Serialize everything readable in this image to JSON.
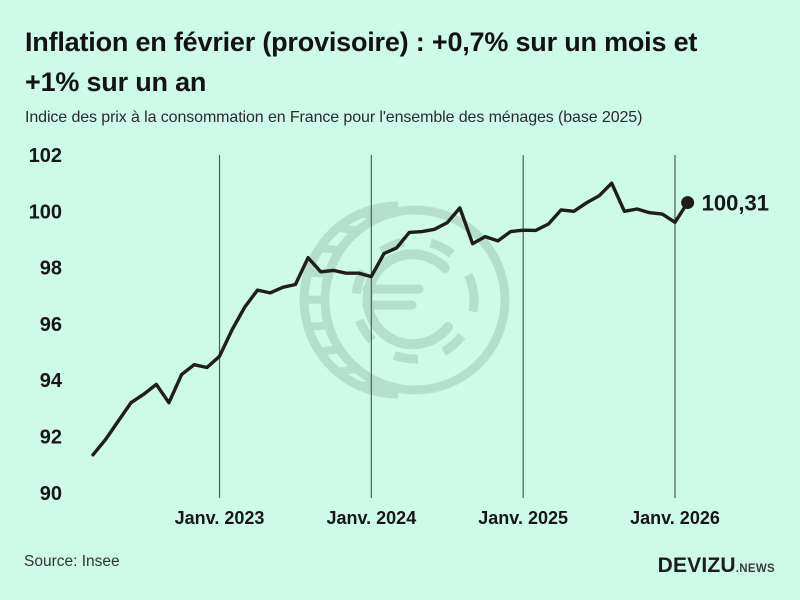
{
  "header": {
    "title_line1": "Inflation en février (provisoire) : +0,7% sur un mois et",
    "title_line2": "+1% sur un an",
    "subtitle": "Indice des prix à la consommation en France pour l'ensemble des ménages (base 2025)"
  },
  "footer": {
    "source": "Source: Insee",
    "brand": "DEVIZU",
    "brand_suffix": ".NEWS"
  },
  "colors": {
    "background": "#CDFAE9",
    "line": "#1E1E1C",
    "gridline": "#4F5F58",
    "text": "#161616",
    "watermark": "#B4DECD"
  },
  "chart_data": {
    "type": "line",
    "title": "Indice des prix à la consommation en France (base 2025)",
    "ylabel": "",
    "xlabel": "",
    "ylim": [
      90,
      102
    ],
    "grid": "vertical-only",
    "legend": "none",
    "y_ticks": [
      102,
      100,
      98,
      96,
      94,
      92,
      90
    ],
    "x_tick_labels": [
      {
        "label": "Janv. 2023",
        "index": 10
      },
      {
        "label": "Janv. 2024",
        "index": 22
      },
      {
        "label": "Janv. 2025",
        "index": 34
      },
      {
        "label": "Janv. 2026",
        "index": 46
      }
    ],
    "end_point_label": "100,31",
    "months": [
      "2022-03",
      "2022-04",
      "2022-05",
      "2022-06",
      "2022-07",
      "2022-08",
      "2022-09",
      "2022-10",
      "2022-11",
      "2022-12",
      "2023-01",
      "2023-02",
      "2023-03",
      "2023-04",
      "2023-05",
      "2023-06",
      "2023-07",
      "2023-08",
      "2023-09",
      "2023-10",
      "2023-11",
      "2023-12",
      "2024-01",
      "2024-02",
      "2024-03",
      "2024-04",
      "2024-05",
      "2024-06",
      "2024-07",
      "2024-08",
      "2024-09",
      "2024-10",
      "2024-11",
      "2024-12",
      "2025-01",
      "2025-02",
      "2025-03",
      "2025-04",
      "2025-05",
      "2025-06",
      "2025-07",
      "2025-08",
      "2025-09",
      "2025-10",
      "2025-11",
      "2025-12",
      "2026-01",
      "2026-02"
    ],
    "values": [
      91.35,
      91.9,
      92.55,
      93.2,
      93.5,
      93.85,
      93.2,
      94.2,
      94.55,
      94.45,
      94.85,
      95.8,
      96.6,
      97.2,
      97.1,
      97.3,
      97.4,
      98.35,
      97.85,
      97.9,
      97.8,
      97.8,
      97.68,
      98.5,
      98.7,
      99.25,
      99.28,
      99.36,
      99.6,
      100.12,
      98.85,
      99.1,
      98.95,
      99.28,
      99.33,
      99.32,
      99.55,
      100.05,
      100.0,
      100.3,
      100.55,
      101.0,
      100.0,
      100.08,
      99.95,
      99.9,
      99.61,
      100.31
    ]
  }
}
